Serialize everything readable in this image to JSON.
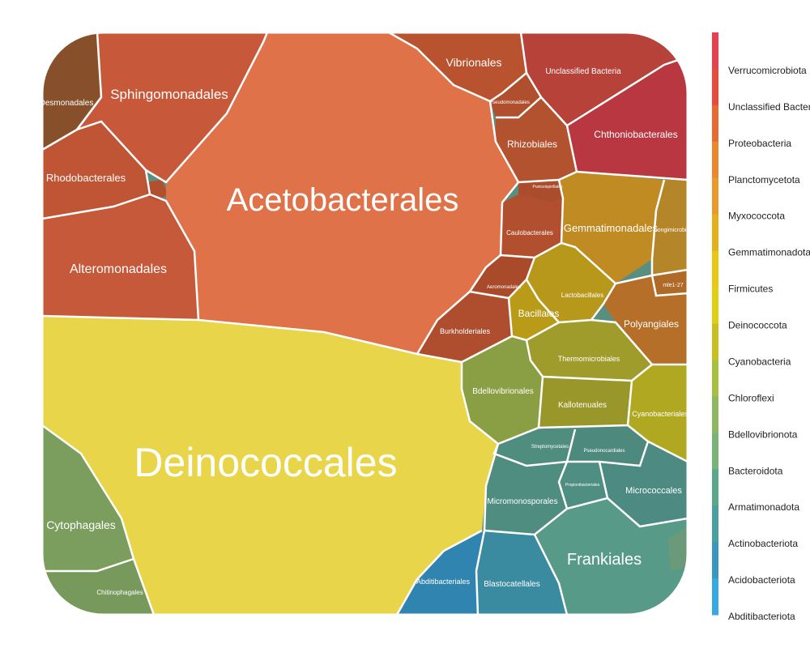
{
  "chart_data": {
    "type": "voronoi-treemap",
    "legend": {
      "placement": "right",
      "entries": [
        {
          "label": "Verrucomicrobiota",
          "color": "#e84050"
        },
        {
          "label": "Unclassified Bacteria",
          "color": "#e84a3c"
        },
        {
          "label": "Proteobacteria",
          "color": "#e96a30"
        },
        {
          "label": "Planctomycetota",
          "color": "#ea8830"
        },
        {
          "label": "Myxococcota",
          "color": "#ea9a2c"
        },
        {
          "label": "Gemmatimonadota",
          "color": "#e6b018"
        },
        {
          "label": "Firmicutes",
          "color": "#e8c810"
        },
        {
          "label": "Deinococcota",
          "color": "#e0d010"
        },
        {
          "label": "Cyanobacteria",
          "color": "#c8c020"
        },
        {
          "label": "Chloroflexi",
          "color": "#a8c040"
        },
        {
          "label": "Bdellovibrionota",
          "color": "#8cb860"
        },
        {
          "label": "Bacteroidota",
          "color": "#78b478"
        },
        {
          "label": "Armatimonadota",
          "color": "#5aa88a"
        },
        {
          "label": "Actinobacteriota",
          "color": "#4aa0a0"
        },
        {
          "label": "Acidobacteriota",
          "color": "#3a98c0"
        },
        {
          "label": "Abditibacteriota",
          "color": "#38a8e0"
        }
      ]
    },
    "cells": [
      {
        "label": "Acetobacterales",
        "phylum": "Proteobacteria",
        "color": "#df7249"
      },
      {
        "label": "Deinococcales",
        "phylum": "Deinococcota",
        "color": "#e8d54a"
      },
      {
        "label": "Sphingomonadales",
        "phylum": "Proteobacteria",
        "color": "#c8583a"
      },
      {
        "label": "Rhodobacterales",
        "phylum": "Proteobacteria",
        "color": "#bf5535"
      },
      {
        "label": "Alteromonadales",
        "phylum": "Proteobacteria",
        "color": "#c5593a"
      },
      {
        "label": "Desmonadales",
        "phylum": "Proteobacteria",
        "color": "#87502a"
      },
      {
        "label": "Vibrionales",
        "phylum": "Proteobacteria",
        "color": "#b9522f"
      },
      {
        "label": "Pseudomonadales",
        "phylum": "Proteobacteria",
        "color": "#b04f2d"
      },
      {
        "label": "Rhizobiales",
        "phylum": "Proteobacteria",
        "color": "#b2522f"
      },
      {
        "label": "Puniceispirillales",
        "phylum": "Proteobacteria",
        "color": "#ab4d2c"
      },
      {
        "label": "Caulobacterales",
        "phylum": "Proteobacteria",
        "color": "#b24f2e"
      },
      {
        "label": "Aeromonadales",
        "phylum": "Proteobacteria",
        "color": "#a94b2b"
      },
      {
        "label": "Burkholderiales",
        "phylum": "Proteobacteria",
        "color": "#ae4e2e"
      },
      {
        "label": "Unclassified Bacteria",
        "phylum": "Unclassified Bacteria",
        "color": "#b7423a"
      },
      {
        "label": "Chthoniobacterales",
        "phylum": "Verrucomicrobiota",
        "color": "#b93740"
      },
      {
        "label": "Gemmatimonadales",
        "phylum": "Gemmatimonadota",
        "color": "#c08b22"
      },
      {
        "label": "Longimicrobiales",
        "phylum": "Gemmatimonadota",
        "color": "#b5852a"
      },
      {
        "label": "Lactobacillales",
        "phylum": "Firmicutes",
        "color": "#b7981a"
      },
      {
        "label": "Bacillales",
        "phylum": "Firmicutes",
        "color": "#b99b18"
      },
      {
        "label": "Polyangiales",
        "phylum": "Myxococcota",
        "color": "#b56f29"
      },
      {
        "label": "mle1-27",
        "phylum": "Myxococcota",
        "color": "#b06a27"
      },
      {
        "label": "Thermomicrobiales",
        "phylum": "Chloroflexi",
        "color": "#9f9c2c"
      },
      {
        "label": "Kallotenuales",
        "phylum": "Chloroflexi",
        "color": "#99962a"
      },
      {
        "label": "Bdellovibrionales",
        "phylum": "Bdellovibrionota",
        "color": "#8a9e43"
      },
      {
        "label": "Cyanobacteriales",
        "phylum": "Cyanobacteria",
        "color": "#b1a822"
      },
      {
        "label": "Streptomycetales",
        "phylum": "Actinobacteriota",
        "color": "#4f8d7e"
      },
      {
        "label": "Pseudonocardiales",
        "phylum": "Actinobacteriota",
        "color": "#4d8a7d"
      },
      {
        "label": "Propionibacteriales",
        "phylum": "Actinobacteriota",
        "color": "#4f8e82"
      },
      {
        "label": "Micromonosporales",
        "phylum": "Actinobacteriota",
        "color": "#4f8d80"
      },
      {
        "label": "Micrococcales",
        "phylum": "Actinobacteriota",
        "color": "#4c8a82"
      },
      {
        "label": "Frankiales",
        "phylum": "Actinobacteriota",
        "color": "#579a88"
      },
      {
        "label": "Cytophagales",
        "phylum": "Bacteroidota",
        "color": "#7b9e5e"
      },
      {
        "label": "Chitinophagales",
        "phylum": "Bacteroidota",
        "color": "#78995c"
      },
      {
        "label": "Abditibacteriales",
        "phylum": "Abditibacteriota",
        "color": "#2f85b0"
      },
      {
        "label": "Blastocatellales",
        "phylum": "Acidobacteriota",
        "color": "#3a8aa0"
      }
    ]
  }
}
